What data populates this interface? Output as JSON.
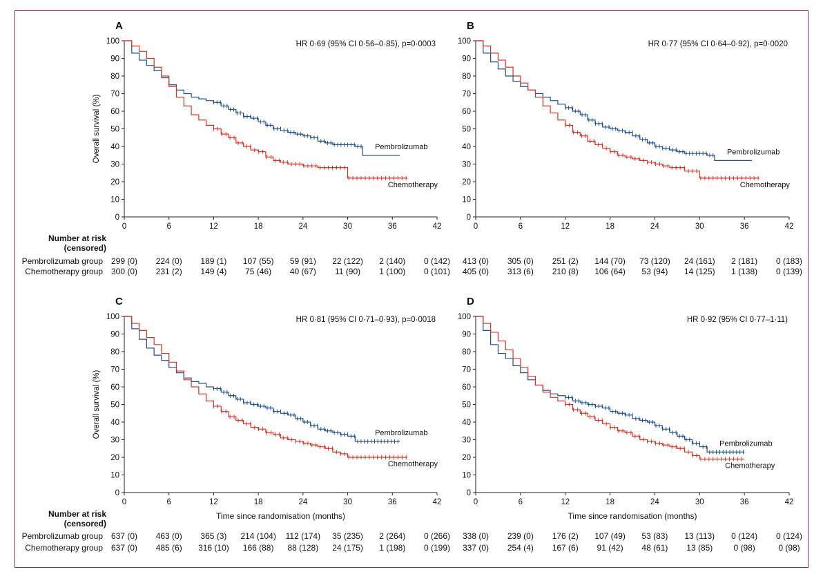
{
  "figure": {
    "xlabel": "Time since randomisation (months)",
    "ylabel": "Overall survival (%)",
    "risk_title_1": "Number at risk",
    "risk_title_2": "(censored)",
    "group_labels": [
      "Pembrolizumab group",
      "Chemotherapy group"
    ]
  },
  "colors": {
    "pembrolizumab": "#1f4e91",
    "chemotherapy": "#e0301e",
    "frame": "#9b2a5c",
    "axis": "#222222"
  },
  "chart_data": [
    {
      "panel": "A",
      "type": "line",
      "title": "HR 0·69 (95% CI 0·56–0·85), p=0·0003",
      "xlabel": "",
      "ylabel": "Overall survival (%)",
      "xlim": [
        0,
        42
      ],
      "ylim": [
        0,
        100
      ],
      "xticks": [
        0,
        6,
        12,
        18,
        24,
        30,
        36,
        42
      ],
      "yticks": [
        0,
        10,
        20,
        30,
        40,
        50,
        60,
        70,
        80,
        90,
        100
      ],
      "series": [
        {
          "name": "Pembrolizumab",
          "x": [
            0,
            1,
            2,
            3,
            4,
            5,
            6,
            7,
            8,
            9,
            10,
            11,
            12,
            13,
            14,
            15,
            16,
            17,
            18,
            19,
            20,
            21,
            22,
            23,
            24,
            25,
            26,
            27,
            28,
            29,
            30,
            31,
            32,
            33,
            34,
            35,
            36,
            37
          ],
          "y": [
            100,
            93,
            89,
            86,
            83,
            79,
            75,
            72,
            70,
            68,
            67,
            66,
            65,
            63,
            61,
            59,
            57,
            56,
            54,
            52,
            50,
            49,
            48,
            47,
            46,
            45,
            43,
            42,
            41,
            41,
            41,
            40,
            35,
            35,
            35,
            35,
            35,
            35
          ]
        },
        {
          "name": "Chemotherapy",
          "x": [
            0,
            1,
            2,
            3,
            4,
            5,
            6,
            7,
            8,
            9,
            10,
            11,
            12,
            13,
            14,
            15,
            16,
            17,
            18,
            19,
            20,
            21,
            22,
            23,
            24,
            25,
            26,
            27,
            28,
            29,
            30,
            31,
            32,
            33,
            34,
            35,
            36,
            37,
            38
          ],
          "y": [
            100,
            97,
            94,
            90,
            85,
            80,
            74,
            68,
            63,
            58,
            55,
            52,
            50,
            47,
            45,
            42,
            40,
            38,
            37,
            34,
            32,
            31,
            30,
            30,
            29,
            29,
            28,
            28,
            28,
            28,
            22,
            22,
            22,
            22,
            22,
            22,
            22,
            22,
            22
          ]
        }
      ],
      "censor_ranges": [
        [
          12,
          32
        ],
        [
          12,
          38
        ]
      ],
      "risk": {
        "pembrolizumab": [
          "299 (0)",
          "224 (0)",
          "189 (1)",
          "107 (55)",
          "59 (91)",
          "22 (122)",
          "2 (140)",
          "0 (142)"
        ],
        "chemotherapy": [
          "300 (0)",
          "231 (2)",
          "149 (4)",
          "75 (46)",
          "40 (67)",
          "11 (90)",
          "1 (100)",
          "0 (101)"
        ]
      }
    },
    {
      "panel": "B",
      "type": "line",
      "title": "HR 0·77 (95% CI 0·64–0·92), p=0·0020",
      "xlabel": "",
      "ylabel": "",
      "xlim": [
        0,
        42
      ],
      "ylim": [
        0,
        100
      ],
      "xticks": [
        0,
        6,
        12,
        18,
        24,
        30,
        36,
        42
      ],
      "yticks": [
        0,
        10,
        20,
        30,
        40,
        50,
        60,
        70,
        80,
        90,
        100
      ],
      "series": [
        {
          "name": "Pembrolizumab",
          "x": [
            0,
            1,
            2,
            3,
            4,
            5,
            6,
            7,
            8,
            9,
            10,
            11,
            12,
            13,
            14,
            15,
            16,
            17,
            18,
            19,
            20,
            21,
            22,
            23,
            24,
            25,
            26,
            27,
            28,
            29,
            30,
            31,
            32,
            33,
            34,
            35,
            36,
            37
          ],
          "y": [
            100,
            93,
            88,
            84,
            80,
            77,
            74,
            72,
            70,
            68,
            66,
            64,
            62,
            60,
            58,
            55,
            53,
            51,
            50,
            49,
            48,
            46,
            44,
            42,
            40,
            39,
            38,
            37,
            36,
            36,
            36,
            35,
            32,
            32,
            32,
            32,
            32,
            32
          ]
        },
        {
          "name": "Chemotherapy",
          "x": [
            0,
            1,
            2,
            3,
            4,
            5,
            6,
            7,
            8,
            9,
            10,
            11,
            12,
            13,
            14,
            15,
            16,
            17,
            18,
            19,
            20,
            21,
            22,
            23,
            24,
            25,
            26,
            27,
            28,
            29,
            30,
            31,
            32,
            33,
            34,
            35,
            36,
            37,
            38
          ],
          "y": [
            100,
            97,
            93,
            89,
            85,
            80,
            76,
            72,
            68,
            63,
            59,
            55,
            52,
            48,
            46,
            43,
            41,
            39,
            37,
            35,
            34,
            33,
            32,
            31,
            30,
            29,
            28,
            28,
            26,
            26,
            22,
            22,
            22,
            22,
            22,
            22,
            22,
            22,
            22
          ]
        }
      ],
      "censor_ranges": [
        [
          12,
          32
        ],
        [
          12,
          38
        ]
      ],
      "risk": {
        "pembrolizumab": [
          "413 (0)",
          "305 (0)",
          "251 (2)",
          "144 (70)",
          "73 (120)",
          "24 (161)",
          "2 (181)",
          "0 (183)"
        ],
        "chemotherapy": [
          "405 (0)",
          "313 (6)",
          "210 (8)",
          "106 (64)",
          "53 (94)",
          "14 (125)",
          "1 (138)",
          "0 (139)"
        ]
      }
    },
    {
      "panel": "C",
      "type": "line",
      "title": "HR 0·81 (95% CI 0·71–0·93), p=0·0018",
      "xlabel": "Time since randomisation (months)",
      "ylabel": "Overall survival (%)",
      "xlim": [
        0,
        42
      ],
      "ylim": [
        0,
        100
      ],
      "xticks": [
        0,
        6,
        12,
        18,
        24,
        30,
        36,
        42
      ],
      "yticks": [
        0,
        10,
        20,
        30,
        40,
        50,
        60,
        70,
        80,
        90,
        100
      ],
      "series": [
        {
          "name": "Pembrolizumab",
          "x": [
            0,
            1,
            2,
            3,
            4,
            5,
            6,
            7,
            8,
            9,
            10,
            11,
            12,
            13,
            14,
            15,
            16,
            17,
            18,
            19,
            20,
            21,
            22,
            23,
            24,
            25,
            26,
            27,
            28,
            29,
            30,
            31,
            32,
            33,
            34,
            35,
            36,
            37
          ],
          "y": [
            100,
            93,
            87,
            82,
            78,
            75,
            71,
            68,
            65,
            63,
            62,
            60,
            59,
            57,
            55,
            53,
            51,
            50,
            49,
            48,
            46,
            45,
            44,
            42,
            40,
            38,
            36,
            35,
            34,
            33,
            32,
            29,
            29,
            29,
            29,
            29,
            29,
            29
          ]
        },
        {
          "name": "Chemotherapy",
          "x": [
            0,
            1,
            2,
            3,
            4,
            5,
            6,
            7,
            8,
            9,
            10,
            11,
            12,
            13,
            14,
            15,
            16,
            17,
            18,
            19,
            20,
            21,
            22,
            23,
            24,
            25,
            26,
            27,
            28,
            29,
            30,
            31,
            32,
            33,
            34,
            35,
            36,
            37,
            38
          ],
          "y": [
            100,
            96,
            92,
            88,
            84,
            79,
            74,
            69,
            64,
            60,
            56,
            52,
            49,
            46,
            43,
            41,
            39,
            37,
            36,
            34,
            33,
            31,
            30,
            29,
            28,
            27,
            26,
            25,
            23,
            22,
            20,
            20,
            20,
            20,
            20,
            20,
            20,
            20,
            20
          ]
        }
      ],
      "censor_ranges": [
        [
          12,
          37
        ],
        [
          12,
          38
        ]
      ],
      "risk": {
        "pembrolizumab": [
          "637 (0)",
          "463 (0)",
          "365 (3)",
          "214 (104)",
          "112 (174)",
          "35 (235)",
          "2 (264)",
          "0 (266)"
        ],
        "chemotherapy": [
          "637 (0)",
          "485 (6)",
          "316 (10)",
          "166 (88)",
          "88 (128)",
          "24 (175)",
          "1 (198)",
          "0 (199)"
        ]
      }
    },
    {
      "panel": "D",
      "type": "line",
      "title": "HR 0·92 (95% CI 0·77–1·11)",
      "xlabel": "Time since randomisation (months)",
      "ylabel": "",
      "xlim": [
        0,
        42
      ],
      "ylim": [
        0,
        100
      ],
      "xticks": [
        0,
        6,
        12,
        18,
        24,
        30,
        36,
        42
      ],
      "yticks": [
        0,
        10,
        20,
        30,
        40,
        50,
        60,
        70,
        80,
        90,
        100
      ],
      "series": [
        {
          "name": "Pembrolizumab",
          "x": [
            0,
            1,
            2,
            3,
            4,
            5,
            6,
            7,
            8,
            9,
            10,
            11,
            12,
            13,
            14,
            15,
            16,
            17,
            18,
            19,
            20,
            21,
            22,
            23,
            24,
            25,
            26,
            27,
            28,
            29,
            30,
            31,
            32,
            33,
            34,
            35,
            36
          ],
          "y": [
            100,
            92,
            84,
            79,
            76,
            72,
            68,
            64,
            61,
            58,
            56,
            55,
            54,
            52,
            51,
            50,
            49,
            48,
            46,
            45,
            44,
            42,
            41,
            40,
            38,
            36,
            34,
            32,
            30,
            28,
            26,
            23,
            23,
            23,
            23,
            23,
            23
          ]
        },
        {
          "name": "Chemotherapy",
          "x": [
            0,
            1,
            2,
            3,
            4,
            5,
            6,
            7,
            8,
            9,
            10,
            11,
            12,
            13,
            14,
            15,
            16,
            17,
            18,
            19,
            20,
            21,
            22,
            23,
            24,
            25,
            26,
            27,
            28,
            29,
            30,
            31,
            32,
            33,
            34,
            35,
            36
          ],
          "y": [
            100,
            96,
            91,
            86,
            81,
            76,
            71,
            66,
            61,
            57,
            54,
            52,
            50,
            47,
            45,
            43,
            41,
            39,
            37,
            35,
            34,
            32,
            30,
            29,
            28,
            27,
            26,
            25,
            23,
            21,
            19,
            19,
            19,
            19,
            19,
            19,
            19
          ]
        }
      ],
      "censor_ranges": [
        [
          12,
          36
        ],
        [
          12,
          36
        ]
      ],
      "risk": {
        "pembrolizumab": [
          "338 (0)",
          "239 (0)",
          "176 (2)",
          "107 (49)",
          "53 (83)",
          "13 (113)",
          "0 (124)",
          "0 (124)"
        ],
        "chemotherapy": [
          "337 (0)",
          "254 (4)",
          "167 (6)",
          "91 (42)",
          "48 (61)",
          "13 (85)",
          "0 (98)",
          "0 (98)"
        ]
      }
    }
  ]
}
